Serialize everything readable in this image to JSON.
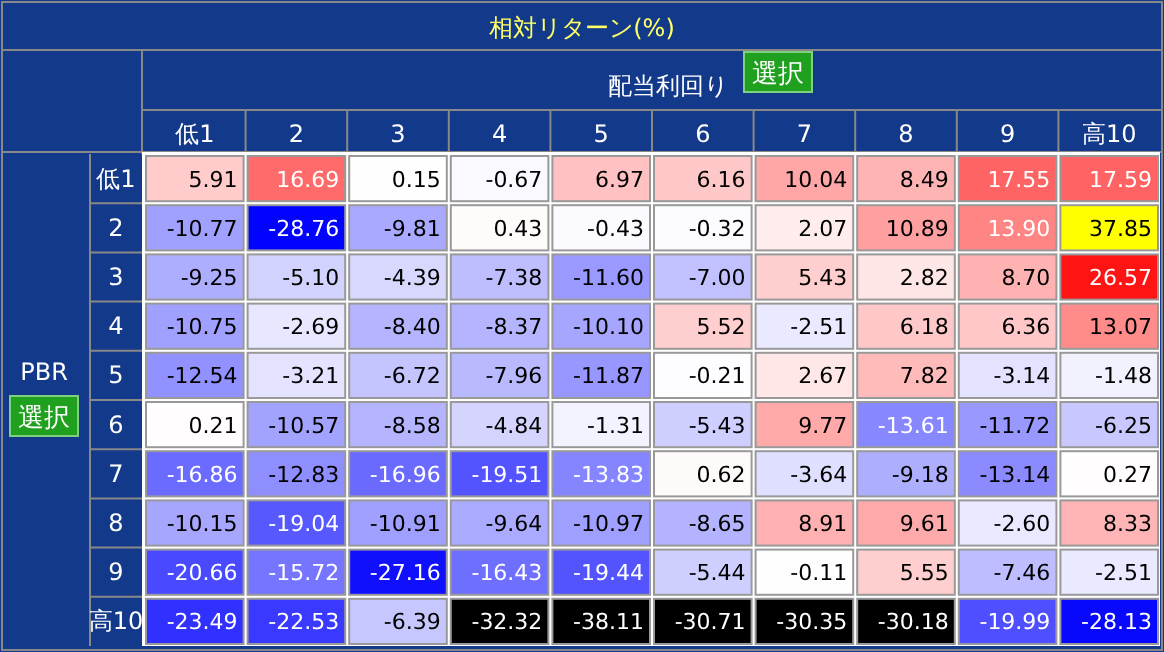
{
  "chart_data": {
    "type": "heatmap",
    "title": "相対リターン(%)",
    "xlabel": "配当利回り",
    "ylabel": "PBR",
    "annotations": [
      "選択",
      "選択"
    ],
    "categories": [
      "低1",
      "2",
      "3",
      "4",
      "5",
      "6",
      "7",
      "8",
      "9",
      "高10"
    ],
    "y_categories": [
      "低1",
      "2",
      "3",
      "4",
      "5",
      "6",
      "7",
      "8",
      "9",
      "高10"
    ],
    "cells": [
      [
        5.91,
        16.69,
        0.15,
        -0.67,
        6.97,
        6.16,
        10.04,
        8.49,
        17.55,
        17.59
      ],
      [
        -10.77,
        -28.76,
        -9.81,
        0.43,
        -0.43,
        -0.32,
        2.07,
        10.89,
        13.9,
        37.85
      ],
      [
        -9.25,
        -5.1,
        -4.39,
        -7.38,
        -11.6,
        -7.0,
        5.43,
        2.82,
        8.7,
        26.57
      ],
      [
        -10.75,
        -2.69,
        -8.4,
        -8.37,
        -10.1,
        5.52,
        -2.51,
        6.18,
        6.36,
        13.07
      ],
      [
        -12.54,
        -3.21,
        -6.72,
        -7.96,
        -11.87,
        -0.21,
        2.67,
        7.82,
        -3.14,
        -1.48
      ],
      [
        0.21,
        -10.57,
        -8.58,
        -4.84,
        -1.31,
        -5.43,
        9.77,
        -13.61,
        -11.72,
        -6.25
      ],
      [
        -16.86,
        -12.83,
        -16.96,
        -19.51,
        -13.83,
        0.62,
        -3.64,
        -9.18,
        -13.14,
        0.27
      ],
      [
        -10.15,
        -19.04,
        -10.91,
        -9.64,
        -10.97,
        -8.65,
        8.91,
        9.61,
        -2.6,
        8.33
      ],
      [
        -20.66,
        -15.72,
        -27.16,
        -16.43,
        -19.44,
        -5.44,
        -0.11,
        5.55,
        -7.46,
        -2.51
      ],
      [
        -23.49,
        -22.53,
        -6.39,
        -32.32,
        -38.11,
        -30.71,
        -30.35,
        -30.18,
        -19.99,
        -28.13
      ]
    ],
    "cell_labels": [
      [
        "5.91",
        "16.69",
        "0.15",
        "-0.67",
        "6.97",
        "6.16",
        "10.04",
        "8.49",
        "17.55",
        "17.59"
      ],
      [
        "-10.77",
        "-28.76",
        "-9.81",
        "0.43",
        "-0.43",
        "-0.32",
        "2.07",
        "10.89",
        "13.90",
        "37.85"
      ],
      [
        "-9.25",
        "-5.10",
        "-4.39",
        "-7.38",
        "-11.60",
        "-7.00",
        "5.43",
        "2.82",
        "8.70",
        "26.57"
      ],
      [
        "-10.75",
        "-2.69",
        "-8.40",
        "-8.37",
        "-10.10",
        "5.52",
        "-2.51",
        "6.18",
        "6.36",
        "13.07"
      ],
      [
        "-12.54",
        "-3.21",
        "-6.72",
        "-7.96",
        "-11.87",
        "-0.21",
        "2.67",
        "7.82",
        "-3.14",
        "-1.48"
      ],
      [
        "0.21",
        "-10.57",
        "-8.58",
        "-4.84",
        "-1.31",
        "-5.43",
        "9.77",
        "-13.61",
        "-11.72",
        "-6.25"
      ],
      [
        "-16.86",
        "-12.83",
        "-16.96",
        "-19.51",
        "-13.83",
        "0.62",
        "-3.64",
        "-9.18",
        "-13.14",
        "0.27"
      ],
      [
        "-10.15",
        "-19.04",
        "-10.91",
        "-9.64",
        "-10.97",
        "-8.65",
        "8.91",
        "9.61",
        "-2.60",
        "8.33"
      ],
      [
        "-20.66",
        "-15.72",
        "-27.16",
        "-16.43",
        "-19.44",
        "-5.44",
        "-0.11",
        "5.55",
        "-7.46",
        "-2.51"
      ],
      [
        "-23.49",
        "-22.53",
        "-6.39",
        "-32.32",
        "-38.11",
        "-30.71",
        "-30.35",
        "-30.18",
        "-19.99",
        "-28.13"
      ]
    ]
  }
}
